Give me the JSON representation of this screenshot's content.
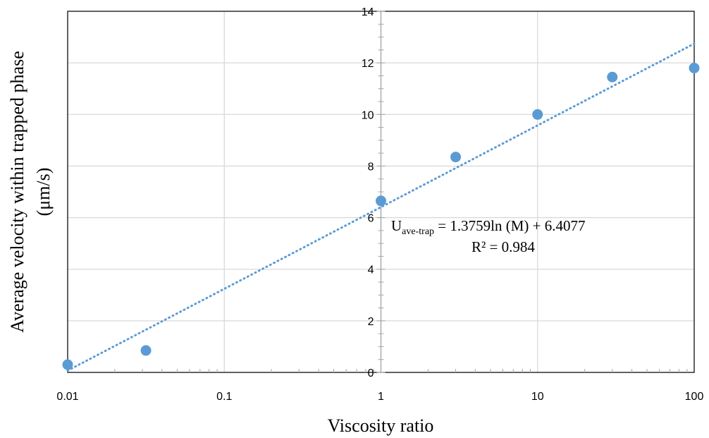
{
  "chart_data": {
    "type": "scatter",
    "xlabel": "Viscosity ratio",
    "ylabel_line1": "Average velocity within trapped phase",
    "ylabel_line2": "(μm/s)",
    "x_scale": "log",
    "xlim": [
      0.01,
      100
    ],
    "ylim": [
      0,
      14
    ],
    "x_ticks": [
      0.01,
      0.1,
      1,
      10,
      100
    ],
    "x_tick_labels": [
      "0.01",
      "0.1",
      "1",
      "10",
      "100"
    ],
    "y_ticks": [
      0,
      2,
      4,
      6,
      8,
      10,
      12,
      14
    ],
    "y_tick_labels": [
      "0",
      "2",
      "4",
      "6",
      "8",
      "10",
      "12",
      "14"
    ],
    "grid": true,
    "y_axis_crosses_x_at": 1,
    "series": [
      {
        "x": [
          0.01,
          0.0316,
          1,
          3,
          10,
          30,
          100
        ],
        "y": [
          0.3,
          0.85,
          6.65,
          8.35,
          10.0,
          11.45,
          11.8
        ],
        "color": "#5B9BD5"
      }
    ],
    "trendline": {
      "type": "logarithmic",
      "a": 1.3759,
      "b": 6.4077,
      "style": "dotted",
      "color": "#5B9BD5"
    },
    "annotation": {
      "equation_symbol": "U",
      "equation_subscript": "ave-trap",
      "equation_rest": " = 1.3759ln (M) + 6.4077",
      "r_squared": "R² = 0.984"
    }
  }
}
